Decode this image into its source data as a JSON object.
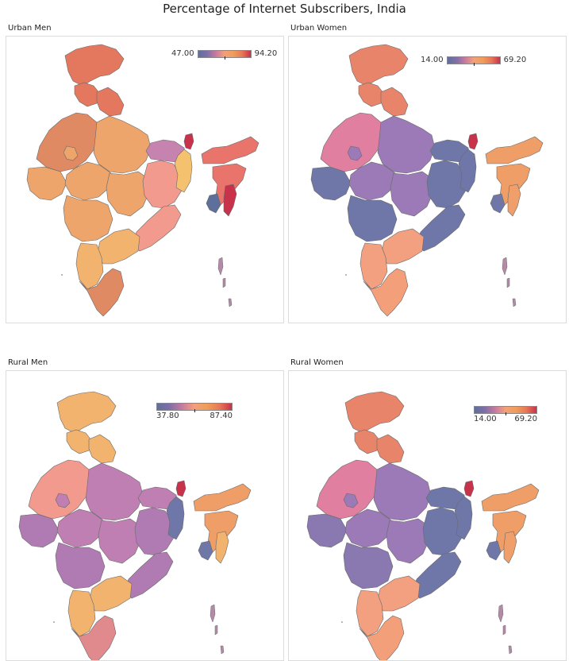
{
  "title": "Percentage of Internet Subscribers, India",
  "panels": [
    {
      "label": "Urban Men",
      "min": "47.00",
      "max": "94.20"
    },
    {
      "label": "Urban Women",
      "min": "14.00",
      "max": "69.20"
    },
    {
      "label": "Rural Men",
      "min": "37.80",
      "max": "87.40"
    },
    {
      "label": "Rural Women",
      "min": "14.00",
      "max": "69.20"
    }
  ],
  "colors": {
    "low": "#5f6f9c",
    "mid_low": "#b07ab3",
    "mid": "#f39a8e",
    "mid_high": "#efab6a",
    "high": "#c8324a",
    "outline": "#6a6a6a"
  },
  "maps": {
    "urban_men": {
      "north": "#e4785e",
      "northwest": "#e08a63",
      "west": "#eda56b",
      "central": "#eda56b",
      "east": "#f39a8e",
      "ne": "#e8746c",
      "south": "#f2b36e",
      "coast": "#e08a63",
      "bihar": "#c783b0",
      "bengal": "#f4c26e",
      "sikkim": "#c8324a",
      "manipur": "#c8324a",
      "tripura": "#5f6f9c"
    },
    "urban_women": {
      "north": "#e8846a",
      "northwest": "#e07fa0",
      "west": "#6e77a8",
      "central": "#9b7ab7",
      "east": "#6e77a8",
      "ne": "#ef9e67",
      "south": "#f2a080",
      "coast": "#f3a07a",
      "bihar": "#6e77a8",
      "bengal": "#6e77a8",
      "sikkim": "#c8324a",
      "manipur": "#f09e6a",
      "tripura": "#6e77a8"
    },
    "rural_men": {
      "north": "#f2b36e",
      "northwest": "#f39a8e",
      "west": "#b07ab3",
      "central": "#c07fb2",
      "east": "#b07ab3",
      "ne": "#ef9e67",
      "south": "#f2b36e",
      "coast": "#e08a8e",
      "bihar": "#c07fb2",
      "bengal": "#6e77a8",
      "sikkim": "#c8324a",
      "manipur": "#f2b36e",
      "tripura": "#6e77a8"
    },
    "rural_women": {
      "north": "#e8846a",
      "northwest": "#e07fa0",
      "west": "#8a78b0",
      "central": "#9b7ab7",
      "east": "#6e77a8",
      "ne": "#ef9e67",
      "south": "#f2a080",
      "coast": "#f3a07a",
      "bihar": "#6e77a8",
      "bengal": "#6e77a8",
      "sikkim": "#c8324a",
      "manipur": "#f09e6a",
      "tripura": "#6e77a8"
    }
  }
}
